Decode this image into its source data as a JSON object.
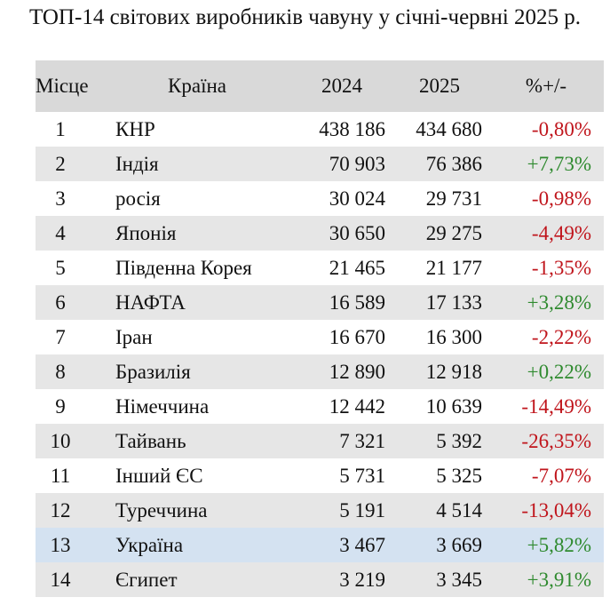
{
  "title": "ТОП-14 світових виробників чавуну у січні-червні 2025 р.",
  "table": {
    "header": [
      "Місце",
      "Країна",
      "2024",
      "2025",
      "%+/-"
    ],
    "rows": [
      [
        "1",
        "КНР",
        "438 186",
        "434 680",
        "-0,80%"
      ],
      [
        "2",
        "Індія",
        "70 903",
        "76 386",
        "+7,73%"
      ],
      [
        "3",
        "росія",
        "30 024",
        "29 731",
        "-0,98%"
      ],
      [
        "4",
        "Японія",
        "30 650",
        "29 275",
        "-4,49%"
      ],
      [
        "5",
        "Південна Корея",
        "21 465",
        "21 177",
        "-1,35%"
      ],
      [
        "6",
        "НАФТА",
        "16 589",
        "17 133",
        "+3,28%"
      ],
      [
        "7",
        "Іран",
        "16 670",
        "16 300",
        "-2,22%"
      ],
      [
        "8",
        "Бразилія",
        "12 890",
        "12 918",
        "+0,22%"
      ],
      [
        "9",
        "Німеччина",
        "12 442",
        "10 639",
        "-14,49%"
      ],
      [
        "10",
        "Тайвань",
        "7 321",
        "5 392",
        "-26,35%"
      ],
      [
        "11",
        "Інший ЄС",
        "5 731",
        "5 325",
        "-7,07%"
      ],
      [
        "12",
        "Туреччина",
        "5 191",
        "4 514",
        "-13,04%"
      ],
      [
        "13",
        "Україна",
        "3 467",
        "3 669",
        "+5,82%"
      ],
      [
        "14",
        "Єгипет",
        "3 219",
        "3 345",
        "+3,91%"
      ]
    ]
  }
}
